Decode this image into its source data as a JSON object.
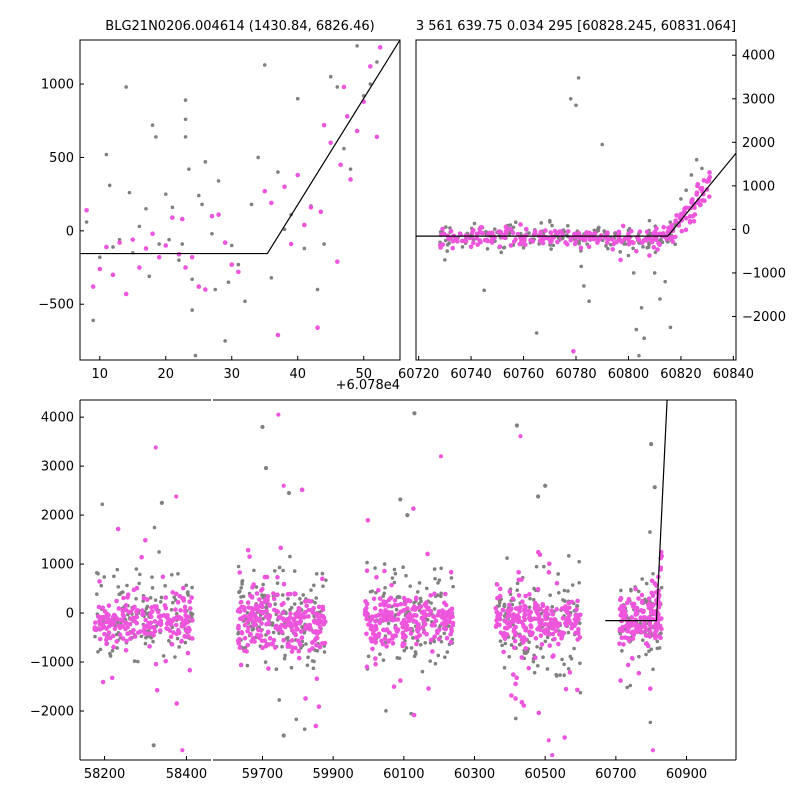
{
  "colors": {
    "gray": "#808080",
    "pink": "#ee55dd",
    "line": "#000000"
  },
  "chart_data": [
    {
      "type": "scatter",
      "title": "BLG21N0206.004614 (1430.84, 6826.46)",
      "xlim": [
        7,
        55.5
      ],
      "ylim": [
        -880,
        1300
      ],
      "xticks": [
        10,
        20,
        30,
        40,
        50
      ],
      "xtick_labels": [
        "10",
        "20",
        "30",
        "40",
        "50"
      ],
      "yticks": [
        -500,
        0,
        500,
        1000
      ],
      "ytick_labels": [
        "−500",
        "0",
        "500",
        "1000"
      ],
      "offset_label": "+6.078e4",
      "model_line": {
        "x": [
          7,
          35.4,
          55.5
        ],
        "y": [
          -155,
          -155,
          1300
        ]
      },
      "series": [
        {
          "name": "gray",
          "points": [
            [
              8,
              60
            ],
            [
              9,
              -610
            ],
            [
              10,
              -180
            ],
            [
              11,
              520
            ],
            [
              11.5,
              310
            ],
            [
              12,
              -110
            ],
            [
              13,
              -60
            ],
            [
              14,
              980
            ],
            [
              14.5,
              260
            ],
            [
              15,
              -150
            ],
            [
              16,
              30
            ],
            [
              17,
              150
            ],
            [
              17.5,
              -310
            ],
            [
              18,
              720
            ],
            [
              18.5,
              640
            ],
            [
              19,
              -90
            ],
            [
              20,
              250
            ],
            [
              20.5,
              -60
            ],
            [
              21,
              160
            ],
            [
              22,
              -200
            ],
            [
              22.5,
              -90
            ],
            [
              23,
              890
            ],
            [
              23,
              760
            ],
            [
              23,
              640
            ],
            [
              23.5,
              420
            ],
            [
              24,
              -330
            ],
            [
              24,
              -540
            ],
            [
              24.5,
              -850
            ],
            [
              25,
              240
            ],
            [
              25.5,
              180
            ],
            [
              26,
              470
            ],
            [
              27,
              -20
            ],
            [
              27.5,
              -400
            ],
            [
              28,
              340
            ],
            [
              29,
              -750
            ],
            [
              29.5,
              -350
            ],
            [
              30,
              -100
            ],
            [
              31,
              -230
            ],
            [
              32,
              -480
            ],
            [
              33,
              180
            ],
            [
              34,
              500
            ],
            [
              35,
              1130
            ],
            [
              36,
              -320
            ],
            [
              37,
              400
            ],
            [
              38,
              10
            ],
            [
              39,
              110
            ],
            [
              40,
              900
            ],
            [
              41,
              -120
            ],
            [
              42,
              170
            ],
            [
              43,
              -400
            ],
            [
              44,
              -90
            ],
            [
              45,
              1050
            ],
            [
              46,
              980
            ],
            [
              47,
              560
            ],
            [
              48,
              420
            ],
            [
              49,
              1260
            ],
            [
              50,
              920
            ],
            [
              51,
              1000
            ],
            [
              52,
              1150
            ]
          ]
        },
        {
          "name": "pink",
          "points": [
            [
              8,
              140
            ],
            [
              9,
              -380
            ],
            [
              10,
              -260
            ],
            [
              11,
              -110
            ],
            [
              12,
              -300
            ],
            [
              13,
              -80
            ],
            [
              14,
              -430
            ],
            [
              15,
              -60
            ],
            [
              16,
              -250
            ],
            [
              17,
              -120
            ],
            [
              18,
              -20
            ],
            [
              19,
              -180
            ],
            [
              20,
              -100
            ],
            [
              21,
              90
            ],
            [
              22,
              -160
            ],
            [
              22.5,
              80
            ],
            [
              23,
              -250
            ],
            [
              24,
              -180
            ],
            [
              25,
              -380
            ],
            [
              26,
              -400
            ],
            [
              27,
              100
            ],
            [
              28,
              110
            ],
            [
              29,
              -80
            ],
            [
              30,
              -230
            ],
            [
              31,
              -280
            ],
            [
              35,
              270
            ],
            [
              36,
              190
            ],
            [
              37,
              -710
            ],
            [
              38,
              300
            ],
            [
              39,
              -90
            ],
            [
              40,
              380
            ],
            [
              41,
              40
            ],
            [
              42,
              160
            ],
            [
              43,
              -660
            ],
            [
              43.5,
              130
            ],
            [
              44,
              720
            ],
            [
              45,
              600
            ],
            [
              46,
              -210
            ],
            [
              46.5,
              450
            ],
            [
              47,
              980
            ],
            [
              47.5,
              780
            ],
            [
              48,
              350
            ],
            [
              49,
              680
            ],
            [
              50,
              880
            ],
            [
              51,
              1120
            ],
            [
              52,
              640
            ],
            [
              52.5,
              1250
            ]
          ]
        }
      ]
    },
    {
      "type": "scatter",
      "title": "3 561 639.75 0.034 295 [60828.245, 60831.064]",
      "xlim": [
        60719,
        60841
      ],
      "ylim": [
        -3000,
        4350
      ],
      "xticks": [
        60720,
        60740,
        60760,
        60780,
        60800,
        60820,
        60840
      ],
      "xtick_labels": [
        "60720",
        "60740",
        "60760",
        "60780",
        "60800",
        "60820",
        "60840"
      ],
      "yticks": [
        -2000,
        -1000,
        0,
        1000,
        2000,
        3000,
        4000
      ],
      "ytick_labels": [
        "−2000",
        "−1000",
        "0",
        "1000",
        "2000",
        "3000",
        "4000"
      ],
      "model_line": {
        "x": [
          60719,
          60815,
          60841
        ],
        "y": [
          -155,
          -155,
          1750
        ]
      },
      "series": [
        {
          "name": "gray",
          "points": [
            [
              60730,
              -700
            ],
            [
              60740,
              -150
            ],
            [
              60745,
              -1400
            ],
            [
              60755,
              100
            ],
            [
              60765,
              -2380
            ],
            [
              60770,
              200
            ],
            [
              60775,
              -200
            ],
            [
              60778,
              3000
            ],
            [
              60780,
              2850
            ],
            [
              60781,
              3480
            ],
            [
              60782,
              -850
            ],
            [
              60783,
              -1300
            ],
            [
              60785,
              -1650
            ],
            [
              60790,
              1950
            ],
            [
              60795,
              -100
            ],
            [
              60800,
              -600
            ],
            [
              60802,
              -1000
            ],
            [
              60803,
              -2300
            ],
            [
              60804,
              -2900
            ],
            [
              60805,
              -1800
            ],
            [
              60806,
              -2500
            ],
            [
              60808,
              200
            ],
            [
              60810,
              -1000
            ],
            [
              60812,
              -1600
            ],
            [
              60814,
              -1200
            ],
            [
              60816,
              -2250
            ],
            [
              60818,
              100
            ],
            [
              60820,
              700
            ],
            [
              60822,
              900
            ],
            [
              60824,
              1250
            ],
            [
              60826,
              1600
            ],
            [
              60828,
              1400
            ]
          ]
        },
        {
          "name": "pink",
          "points": [
            [
              60732,
              -200
            ],
            [
              60736,
              -120
            ],
            [
              60740,
              -400
            ],
            [
              60744,
              50
            ],
            [
              60748,
              -300
            ],
            [
              60752,
              -180
            ],
            [
              60756,
              -80
            ],
            [
              60760,
              -320
            ],
            [
              60764,
              -120
            ],
            [
              60768,
              -200
            ],
            [
              60772,
              -40
            ],
            [
              60776,
              -300
            ],
            [
              60778,
              -250
            ],
            [
              60780,
              -130
            ],
            [
              60784,
              -160
            ],
            [
              60788,
              -220
            ],
            [
              60792,
              -90
            ],
            [
              60796,
              -140
            ],
            [
              60798,
              80
            ],
            [
              60800,
              -180
            ],
            [
              60804,
              -250
            ],
            [
              60808,
              -600
            ],
            [
              60812,
              -100
            ],
            [
              60816,
              -200
            ],
            [
              60818,
              200
            ],
            [
              60820,
              350
            ],
            [
              60822,
              500
            ],
            [
              60824,
              620
            ],
            [
              60826,
              800
            ],
            [
              60828,
              950
            ],
            [
              60830,
              1100
            ],
            [
              60831,
              1200
            ],
            [
              60779,
              -2800
            ],
            [
              60785,
              -400
            ],
            [
              60797,
              -700
            ],
            [
              60803,
              -500
            ]
          ]
        }
      ]
    },
    {
      "type": "scatter",
      "title": "",
      "broken_axis": true,
      "segments": [
        {
          "xlim": [
            58140,
            58460
          ],
          "xticks": [
            58200,
            58400
          ],
          "xtick_labels": [
            "58200",
            "58400"
          ]
        },
        {
          "xlim": [
            59560,
            61040
          ],
          "xticks": [
            59700,
            59900,
            60100,
            60300,
            60500,
            60700,
            60900
          ],
          "xtick_labels": [
            "59700",
            "59900",
            "60100",
            "60300",
            "60500",
            "60700",
            "60900"
          ]
        }
      ],
      "ylim": [
        -3000,
        4350
      ],
      "yticks": [
        -2000,
        -1000,
        0,
        1000,
        2000,
        3000,
        4000
      ],
      "ytick_labels": [
        "−2000",
        "−1000",
        "0",
        "1000",
        "2000",
        "3000",
        "4000"
      ],
      "model_line": {
        "x": [
          60670,
          60815,
          60845
        ],
        "y": [
          -155,
          -155,
          4350
        ]
      },
      "seasons": [
        {
          "start": 58175,
          "end": 58415,
          "spread": 420,
          "n": 140
        },
        {
          "start": 59630,
          "end": 59880,
          "spread": 480,
          "n": 160
        },
        {
          "start": 59990,
          "end": 60240,
          "spread": 480,
          "n": 150
        },
        {
          "start": 60360,
          "end": 60600,
          "spread": 480,
          "n": 150
        },
        {
          "start": 60710,
          "end": 60830,
          "spread": 420,
          "n": 90
        }
      ],
      "outliers": [
        [
          58320,
          -2700
        ],
        [
          58325,
          3380
        ],
        [
          58340,
          2250
        ],
        [
          58375,
          2380
        ],
        [
          58390,
          -2800
        ],
        [
          59700,
          3800
        ],
        [
          59710,
          2960
        ],
        [
          59745,
          4050
        ],
        [
          59760,
          2600
        ],
        [
          59775,
          2450
        ],
        [
          59760,
          -2500
        ],
        [
          60130,
          4080
        ],
        [
          60205,
          3200
        ],
        [
          60110,
          2000
        ],
        [
          60090,
          2320
        ],
        [
          60420,
          3830
        ],
        [
          60430,
          3610
        ],
        [
          60480,
          2380
        ],
        [
          60500,
          2600
        ],
        [
          60510,
          -2600
        ],
        [
          60520,
          -2900
        ],
        [
          60800,
          3450
        ],
        [
          60810,
          2570
        ],
        [
          60805,
          -2800
        ]
      ]
    }
  ]
}
